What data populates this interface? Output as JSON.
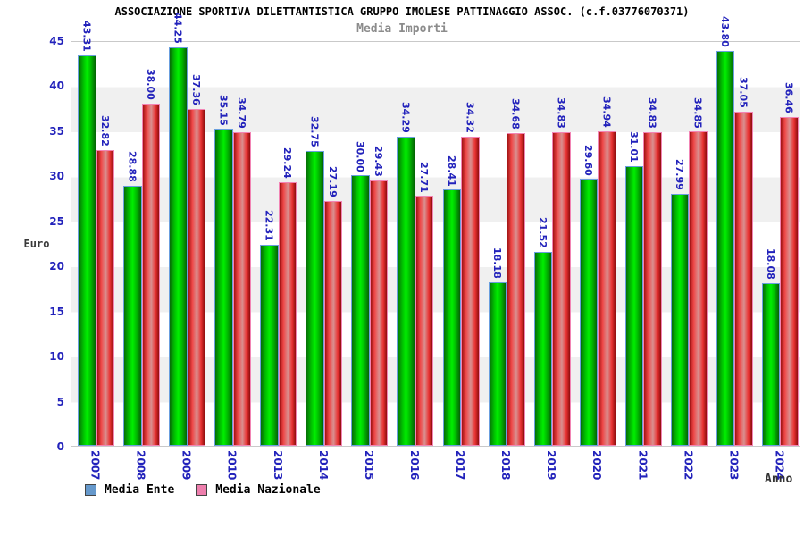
{
  "title": "ASSOCIAZIONE SPORTIVA DILETTANTISTICA GRUPPO IMOLESE PATTINAGGIO ASSOC. (c.f.03776070371)",
  "subtitle": "Media Importi",
  "y_axis": {
    "label": "Euro",
    "ticks": [
      0,
      5,
      10,
      15,
      20,
      25,
      30,
      35,
      40,
      45
    ],
    "max": 45
  },
  "x_axis": {
    "label": "Anno"
  },
  "legend": {
    "items": [
      {
        "label": "Media Ente",
        "swatch_color": "#6699cc"
      },
      {
        "label": "Media Nazionale",
        "swatch_color": "#ee7fad"
      }
    ]
  },
  "colors": {
    "label_blue": "#2222bb",
    "green_bar": "#00dd00",
    "green_bar_outline": "#6a9fdf",
    "red_bar": "#ee3333",
    "red_bar_outline": "#f285b5",
    "band_gray": "#f0f0f0",
    "subtitle_gray": "#8c8c8c"
  },
  "chart_data": {
    "type": "bar",
    "title": "Media Importi",
    "xlabel": "Anno",
    "ylabel": "Euro",
    "ylim": [
      0,
      45
    ],
    "grid": "horizontal-bands",
    "legend_position": "bottom",
    "value_labels": "rotated-90-above-bars",
    "categories": [
      "2007",
      "2008",
      "2009",
      "2010",
      "2013",
      "2014",
      "2015",
      "2016",
      "2017",
      "2018",
      "2019",
      "2020",
      "2021",
      "2022",
      "2023",
      "2024"
    ],
    "series": [
      {
        "name": "Media Ente",
        "values": [
          43.31,
          28.88,
          44.25,
          35.15,
          22.31,
          32.75,
          30.0,
          34.29,
          28.41,
          18.18,
          21.52,
          29.6,
          31.01,
          27.99,
          43.8,
          18.08
        ]
      },
      {
        "name": "Media Nazionale",
        "values": [
          32.82,
          38.0,
          37.36,
          34.79,
          29.24,
          27.19,
          29.43,
          27.71,
          34.32,
          34.68,
          34.83,
          34.94,
          34.83,
          34.85,
          37.05,
          36.46
        ]
      }
    ]
  }
}
